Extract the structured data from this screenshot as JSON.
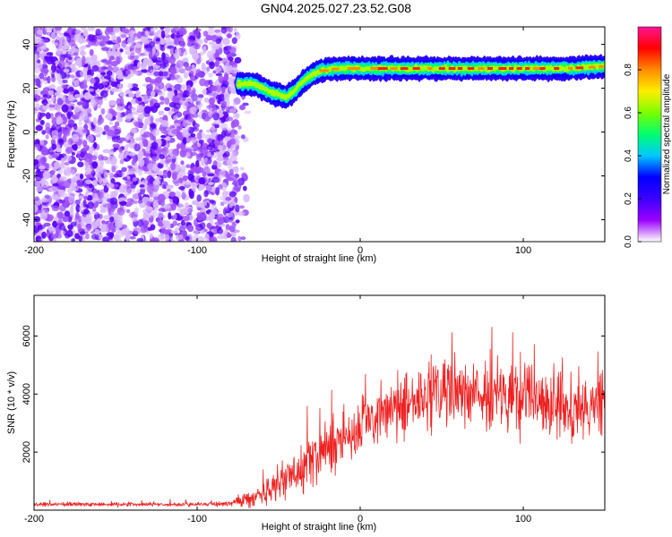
{
  "title": "GN04.2025.027.23.52.G08",
  "chart_data": [
    {
      "type": "heatmap",
      "xlabel": "Height of straight line (km)",
      "ylabel": "Frequency (Hz)",
      "xlim": [
        -200,
        150
      ],
      "ylim": [
        -50,
        48
      ],
      "xticks": [
        -200,
        -100,
        0,
        100
      ],
      "yticks": [
        -40,
        -20,
        0,
        20,
        40
      ],
      "colorbar": {
        "label": "Normalized spectral amplitude",
        "range": [
          0,
          1
        ],
        "ticks": [
          "0.0",
          "0.2",
          "0.4",
          "0.6",
          "0.8"
        ],
        "tick_values": [
          0,
          0.2,
          0.4,
          0.6,
          0.8
        ],
        "colormap": [
          "#ffffff",
          "#9a00ff",
          "#3c00ff",
          "#0000ff",
          "#00c8ff",
          "#00ff6e",
          "#7aff00",
          "#ffee00",
          "#ff8c00",
          "#ff0000",
          "#ff1493"
        ]
      },
      "noise_region_x": [
        -200,
        -75
      ],
      "signal_track": [
        {
          "x": -75,
          "f": 22
        },
        {
          "x": -70,
          "f": 22
        },
        {
          "x": -65,
          "f": 22
        },
        {
          "x": -60,
          "f": 20
        },
        {
          "x": -55,
          "f": 18
        },
        {
          "x": -50,
          "f": 17
        },
        {
          "x": -45,
          "f": 16
        },
        {
          "x": -40,
          "f": 19
        },
        {
          "x": -35,
          "f": 23
        },
        {
          "x": -30,
          "f": 26
        },
        {
          "x": -25,
          "f": 28
        },
        {
          "x": -15,
          "f": 29
        },
        {
          "x": 0,
          "f": 29
        },
        {
          "x": 25,
          "f": 29
        },
        {
          "x": 50,
          "f": 29
        },
        {
          "x": 75,
          "f": 29
        },
        {
          "x": 100,
          "f": 29
        },
        {
          "x": 125,
          "f": 29
        },
        {
          "x": 150,
          "f": 30
        }
      ]
    },
    {
      "type": "line",
      "xlabel": "Height of straight line (km)",
      "ylabel": "SNR (10 * v/v)",
      "xlim": [
        -200,
        150
      ],
      "ylim": [
        0,
        7400
      ],
      "xticks": [
        -200,
        -100,
        0,
        100
      ],
      "yticks": [
        2000,
        4000,
        6000
      ],
      "color": "#ee2020",
      "envelope": [
        {
          "x": -200,
          "mean": 200,
          "spread": 60
        },
        {
          "x": -100,
          "mean": 200,
          "spread": 60
        },
        {
          "x": -80,
          "mean": 230,
          "spread": 80
        },
        {
          "x": -60,
          "mean": 550,
          "spread": 350
        },
        {
          "x": -45,
          "mean": 1100,
          "spread": 650
        },
        {
          "x": -30,
          "mean": 1700,
          "spread": 750
        },
        {
          "x": -15,
          "mean": 2300,
          "spread": 800
        },
        {
          "x": 0,
          "mean": 2900,
          "spread": 800
        },
        {
          "x": 20,
          "mean": 3500,
          "spread": 850
        },
        {
          "x": 40,
          "mean": 3900,
          "spread": 950
        },
        {
          "x": 60,
          "mean": 4000,
          "spread": 1000
        },
        {
          "x": 80,
          "mean": 3900,
          "spread": 1000
        },
        {
          "x": 100,
          "mean": 3800,
          "spread": 1000
        },
        {
          "x": 120,
          "mean": 3600,
          "spread": 1000
        },
        {
          "x": 140,
          "mean": 3400,
          "spread": 950
        },
        {
          "x": 150,
          "mean": 3800,
          "spread": 900
        }
      ]
    }
  ]
}
